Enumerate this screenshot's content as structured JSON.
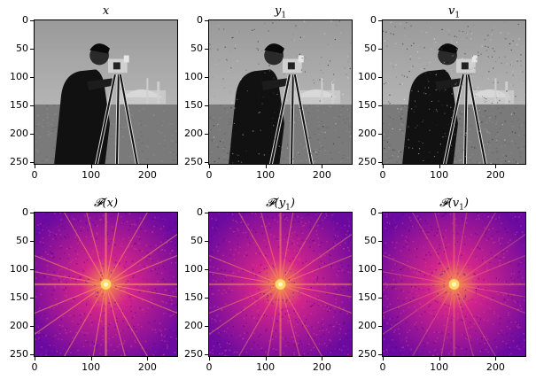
{
  "figure": {
    "panels": [
      {
        "id": "x",
        "title_main": "x",
        "title_sub": "",
        "title_wrap": "",
        "kind": "image",
        "noise": 0.0
      },
      {
        "id": "y1",
        "title_main": "y",
        "title_sub": "1",
        "title_wrap": "",
        "kind": "image",
        "noise": 0.08
      },
      {
        "id": "v1",
        "title_main": "v",
        "title_sub": "1",
        "title_wrap": "",
        "kind": "image",
        "noise": 0.16
      },
      {
        "id": "Fx",
        "title_main": "𝓕(x",
        "title_sub": "",
        "title_wrap": ")",
        "kind": "spectrum",
        "noise": 0.0
      },
      {
        "id": "Fy1",
        "title_main": "𝓕(y",
        "title_sub": "1",
        "title_wrap": ")",
        "kind": "spectrum",
        "noise": 0.1
      },
      {
        "id": "Fv1",
        "title_main": "𝓕(v",
        "title_sub": "1",
        "title_wrap": ")",
        "kind": "spectrum",
        "noise": 0.25
      }
    ],
    "y_ticks": [
      "0",
      "50",
      "100",
      "150",
      "200",
      "250"
    ],
    "x_ticks": [
      "0",
      "100",
      "200"
    ],
    "colors": {
      "spectrum_low": "#6b0aa0",
      "spectrum_mid": "#d2248a",
      "spectrum_high": "#ffe06b",
      "sky_gray": "#a0a0a0",
      "grass_gray": "#7a7a7a",
      "figure_dark": "#111111"
    }
  }
}
